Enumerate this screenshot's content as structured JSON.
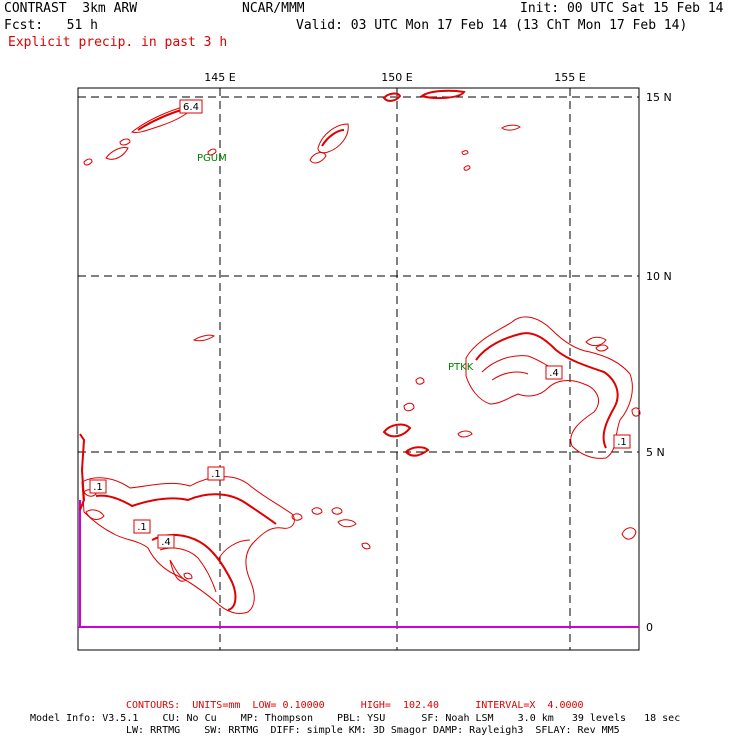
{
  "header": {
    "model": "CONTRAST  3km ARW",
    "center": "NCAR/MMM",
    "init": "Init: 00 UTC Sat 15 Feb 14",
    "fcst": "Fcst:   51 h",
    "valid": "Valid: 03 UTC Mon 17 Feb 14 (13 ChT Mon 17 Feb 14)",
    "field": "Explicit precip. in past 3 h"
  },
  "axes": {
    "lon_labels": [
      "145 E",
      "150 E",
      "155 E"
    ],
    "lat_labels": [
      "15 N",
      "10 N",
      "5 N",
      "0"
    ]
  },
  "stations": [
    "PGUM",
    "PTKK"
  ],
  "contour_labels": [
    "6.4",
    ".1",
    ".4",
    ".1",
    ".1",
    ".4",
    ".1"
  ],
  "footer": {
    "contours": "CONTOURS:  UNITS=mm  LOW= 0.10000      HIGH=  102.40      INTERVAL=X  4.0000",
    "line1": "Model Info: V3.5.1    CU: No Cu    MP: Thompson    PBL: YSU      SF: Noah LSM    3.0 km   39 levels   18 sec",
    "line2": "LW: RRTMG    SW: RRTMG  DIFF: simple KM: 3D Smagor DAMP: Rayleigh3  SFLAY: Rev MM5"
  },
  "colors": {
    "contour": "#e00000",
    "station": "#008000",
    "equator": "#d000d0",
    "text": "#000000"
  }
}
